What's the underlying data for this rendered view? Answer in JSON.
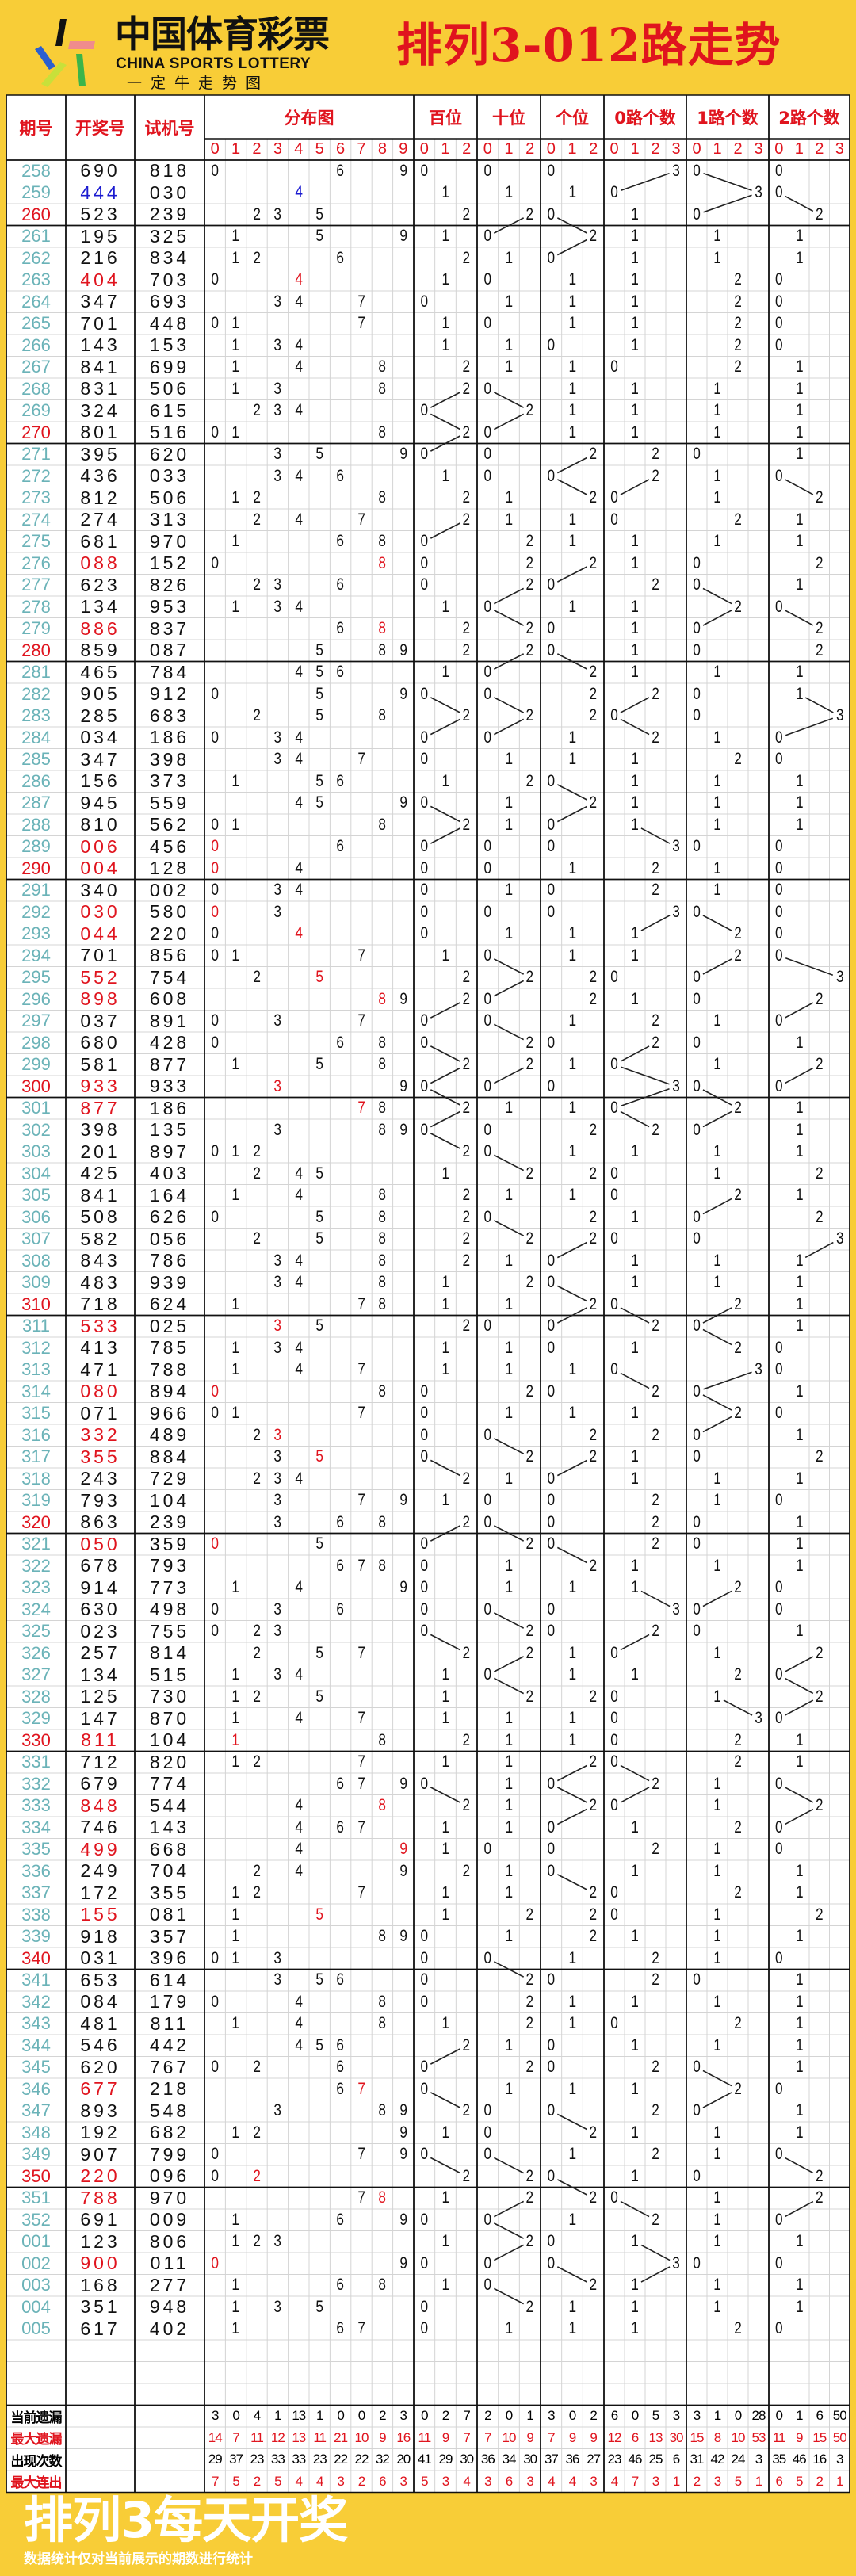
{
  "brand": {
    "name_cn": "中国体育彩票",
    "name_en": "CHINA SPORTS LOTTERY",
    "tagline": "一定牛走势图"
  },
  "title": "排列3-012路走势",
  "header": {
    "issue": "期号",
    "draw": "开奖号",
    "test": "试机号",
    "groups": [
      "分布图",
      "百位",
      "十位",
      "个位",
      "0路个数",
      "1路个数",
      "2路个数"
    ],
    "sub_labels": [
      "0",
      "1",
      "2",
      "3",
      "4",
      "5",
      "6",
      "7",
      "8",
      "9",
      "0",
      "1",
      "2",
      "0",
      "1",
      "2",
      "0",
      "1",
      "2",
      "0",
      "1",
      "2",
      "3",
      "0",
      "1",
      "2",
      "3",
      "0",
      "1",
      "2",
      "3"
    ]
  },
  "colors": {
    "background": "#f8cd37",
    "accent_red": "#e0141e",
    "issue_teal": "#6bb3b8",
    "leopard_blue": "#1a1ad0"
  },
  "rows": [
    {
      "issue": "258",
      "draw": "690",
      "test": "818"
    },
    {
      "issue": "259",
      "draw": "444",
      "test": "030"
    },
    {
      "issue": "260",
      "draw": "523",
      "test": "239"
    },
    {
      "issue": "261",
      "draw": "195",
      "test": "325"
    },
    {
      "issue": "262",
      "draw": "216",
      "test": "834"
    },
    {
      "issue": "263",
      "draw": "404",
      "test": "703"
    },
    {
      "issue": "264",
      "draw": "347",
      "test": "693"
    },
    {
      "issue": "265",
      "draw": "701",
      "test": "448"
    },
    {
      "issue": "266",
      "draw": "143",
      "test": "153"
    },
    {
      "issue": "267",
      "draw": "841",
      "test": "699"
    },
    {
      "issue": "268",
      "draw": "831",
      "test": "506"
    },
    {
      "issue": "269",
      "draw": "324",
      "test": "615"
    },
    {
      "issue": "270",
      "draw": "801",
      "test": "516"
    },
    {
      "issue": "271",
      "draw": "395",
      "test": "620"
    },
    {
      "issue": "272",
      "draw": "436",
      "test": "033"
    },
    {
      "issue": "273",
      "draw": "812",
      "test": "506"
    },
    {
      "issue": "274",
      "draw": "274",
      "test": "313"
    },
    {
      "issue": "275",
      "draw": "681",
      "test": "970"
    },
    {
      "issue": "276",
      "draw": "088",
      "test": "152"
    },
    {
      "issue": "277",
      "draw": "623",
      "test": "826"
    },
    {
      "issue": "278",
      "draw": "134",
      "test": "953"
    },
    {
      "issue": "279",
      "draw": "886",
      "test": "837"
    },
    {
      "issue": "280",
      "draw": "859",
      "test": "087"
    },
    {
      "issue": "281",
      "draw": "465",
      "test": "784"
    },
    {
      "issue": "282",
      "draw": "905",
      "test": "912"
    },
    {
      "issue": "283",
      "draw": "285",
      "test": "683"
    },
    {
      "issue": "284",
      "draw": "034",
      "test": "186"
    },
    {
      "issue": "285",
      "draw": "347",
      "test": "398"
    },
    {
      "issue": "286",
      "draw": "156",
      "test": "373"
    },
    {
      "issue": "287",
      "draw": "945",
      "test": "559"
    },
    {
      "issue": "288",
      "draw": "810",
      "test": "562"
    },
    {
      "issue": "289",
      "draw": "006",
      "test": "456"
    },
    {
      "issue": "290",
      "draw": "004",
      "test": "128"
    },
    {
      "issue": "291",
      "draw": "340",
      "test": "002"
    },
    {
      "issue": "292",
      "draw": "030",
      "test": "580"
    },
    {
      "issue": "293",
      "draw": "044",
      "test": "220"
    },
    {
      "issue": "294",
      "draw": "701",
      "test": "856"
    },
    {
      "issue": "295",
      "draw": "552",
      "test": "754"
    },
    {
      "issue": "296",
      "draw": "898",
      "test": "608"
    },
    {
      "issue": "297",
      "draw": "037",
      "test": "891"
    },
    {
      "issue": "298",
      "draw": "680",
      "test": "428"
    },
    {
      "issue": "299",
      "draw": "581",
      "test": "877"
    },
    {
      "issue": "300",
      "draw": "933",
      "test": "933"
    },
    {
      "issue": "301",
      "draw": "877",
      "test": "186"
    },
    {
      "issue": "302",
      "draw": "398",
      "test": "135"
    },
    {
      "issue": "303",
      "draw": "201",
      "test": "897"
    },
    {
      "issue": "304",
      "draw": "425",
      "test": "403"
    },
    {
      "issue": "305",
      "draw": "841",
      "test": "164"
    },
    {
      "issue": "306",
      "draw": "508",
      "test": "626"
    },
    {
      "issue": "307",
      "draw": "582",
      "test": "056"
    },
    {
      "issue": "308",
      "draw": "843",
      "test": "786"
    },
    {
      "issue": "309",
      "draw": "483",
      "test": "939"
    },
    {
      "issue": "310",
      "draw": "718",
      "test": "624"
    },
    {
      "issue": "311",
      "draw": "533",
      "test": "025"
    },
    {
      "issue": "312",
      "draw": "413",
      "test": "785"
    },
    {
      "issue": "313",
      "draw": "471",
      "test": "788"
    },
    {
      "issue": "314",
      "draw": "080",
      "test": "894"
    },
    {
      "issue": "315",
      "draw": "071",
      "test": "966"
    },
    {
      "issue": "316",
      "draw": "332",
      "test": "489"
    },
    {
      "issue": "317",
      "draw": "355",
      "test": "884"
    },
    {
      "issue": "318",
      "draw": "243",
      "test": "729"
    },
    {
      "issue": "319",
      "draw": "793",
      "test": "104"
    },
    {
      "issue": "320",
      "draw": "863",
      "test": "239"
    },
    {
      "issue": "321",
      "draw": "050",
      "test": "359"
    },
    {
      "issue": "322",
      "draw": "678",
      "test": "793"
    },
    {
      "issue": "323",
      "draw": "914",
      "test": "773"
    },
    {
      "issue": "324",
      "draw": "630",
      "test": "498"
    },
    {
      "issue": "325",
      "draw": "023",
      "test": "755"
    },
    {
      "issue": "326",
      "draw": "257",
      "test": "814"
    },
    {
      "issue": "327",
      "draw": "134",
      "test": "515"
    },
    {
      "issue": "328",
      "draw": "125",
      "test": "730"
    },
    {
      "issue": "329",
      "draw": "147",
      "test": "870"
    },
    {
      "issue": "330",
      "draw": "811",
      "test": "104"
    },
    {
      "issue": "331",
      "draw": "712",
      "test": "820"
    },
    {
      "issue": "332",
      "draw": "679",
      "test": "774"
    },
    {
      "issue": "333",
      "draw": "848",
      "test": "544"
    },
    {
      "issue": "334",
      "draw": "746",
      "test": "143"
    },
    {
      "issue": "335",
      "draw": "499",
      "test": "668"
    },
    {
      "issue": "336",
      "draw": "249",
      "test": "704"
    },
    {
      "issue": "337",
      "draw": "172",
      "test": "355"
    },
    {
      "issue": "338",
      "draw": "155",
      "test": "081"
    },
    {
      "issue": "339",
      "draw": "918",
      "test": "357"
    },
    {
      "issue": "340",
      "draw": "031",
      "test": "396"
    },
    {
      "issue": "341",
      "draw": "653",
      "test": "614"
    },
    {
      "issue": "342",
      "draw": "084",
      "test": "179"
    },
    {
      "issue": "343",
      "draw": "481",
      "test": "811"
    },
    {
      "issue": "344",
      "draw": "546",
      "test": "442"
    },
    {
      "issue": "345",
      "draw": "620",
      "test": "767"
    },
    {
      "issue": "346",
      "draw": "677",
      "test": "218"
    },
    {
      "issue": "347",
      "draw": "893",
      "test": "548"
    },
    {
      "issue": "348",
      "draw": "192",
      "test": "682"
    },
    {
      "issue": "349",
      "draw": "907",
      "test": "799"
    },
    {
      "issue": "350",
      "draw": "220",
      "test": "096"
    },
    {
      "issue": "351",
      "draw": "788",
      "test": "970"
    },
    {
      "issue": "352",
      "draw": "691",
      "test": "009"
    },
    {
      "issue": "001",
      "draw": "123",
      "test": "806"
    },
    {
      "issue": "002",
      "draw": "900",
      "test": "011"
    },
    {
      "issue": "003",
      "draw": "168",
      "test": "277"
    },
    {
      "issue": "004",
      "draw": "351",
      "test": "948"
    },
    {
      "issue": "005",
      "draw": "617",
      "test": "402"
    }
  ],
  "stats": [
    {
      "label": "当前遗漏",
      "values": [
        "3",
        "0",
        "4",
        "1",
        "13",
        "1",
        "0",
        "0",
        "2",
        "3",
        "0",
        "2",
        "7",
        "2",
        "0",
        "1",
        "3",
        "0",
        "2",
        "6",
        "0",
        "5",
        "3",
        "3",
        "1",
        "0",
        "28",
        "0",
        "1",
        "6",
        "50"
      ]
    },
    {
      "label": "最大遗漏",
      "values": [
        "14",
        "7",
        "11",
        "12",
        "13",
        "11",
        "21",
        "10",
        "9",
        "16",
        "11",
        "9",
        "7",
        "7",
        "10",
        "9",
        "7",
        "9",
        "9",
        "12",
        "6",
        "13",
        "30",
        "15",
        "8",
        "10",
        "53",
        "11",
        "9",
        "15",
        "50"
      ]
    },
    {
      "label": "出现次数",
      "values": [
        "29",
        "37",
        "23",
        "33",
        "33",
        "23",
        "22",
        "22",
        "32",
        "20",
        "41",
        "29",
        "30",
        "36",
        "34",
        "30",
        "37",
        "36",
        "27",
        "23",
        "46",
        "25",
        "6",
        "31",
        "42",
        "24",
        "3",
        "35",
        "46",
        "16",
        "3"
      ]
    },
    {
      "label": "最大连出",
      "values": [
        "7",
        "5",
        "2",
        "5",
        "4",
        "4",
        "3",
        "2",
        "6",
        "3",
        "5",
        "3",
        "4",
        "3",
        "6",
        "3",
        "4",
        "4",
        "3",
        "4",
        "7",
        "3",
        "1",
        "2",
        "3",
        "5",
        "1",
        "6",
        "5",
        "2",
        "1"
      ]
    }
  ],
  "banner": {
    "title": "排列3每天开奖",
    "note": "数据统计仅对当前展示的期数进行统计"
  }
}
